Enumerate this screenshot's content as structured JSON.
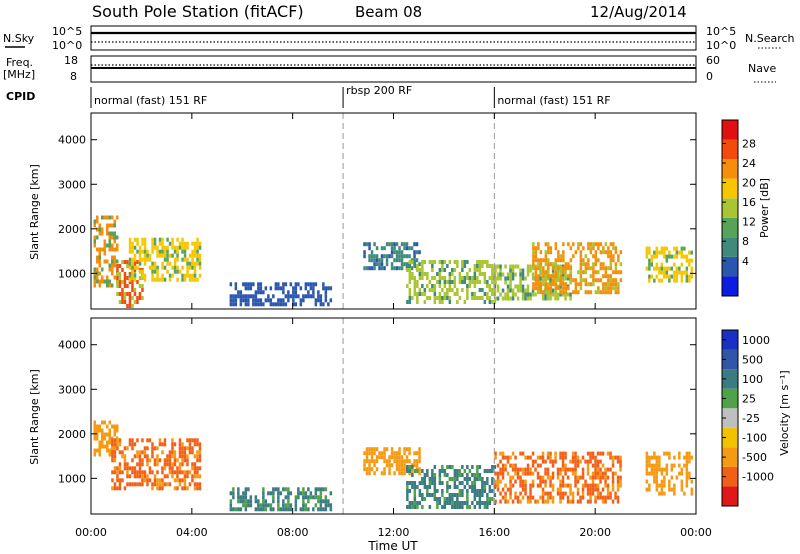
{
  "header": {
    "station": "South Pole Station (fitACF)",
    "beam": "Beam 08",
    "date": "12/Aug/2014"
  },
  "noise_panel": {
    "left_label": "N.Sky",
    "left_ticks": [
      "10^5",
      "10^0"
    ],
    "right_label": "N.Search",
    "right_ticks": [
      "10^5",
      "10^0"
    ]
  },
  "freq_panel": {
    "left_label_line1": "Freq.",
    "left_label_line2": "[MHz]",
    "left_ticks": [
      "18",
      "8"
    ],
    "right_label": "Nave",
    "right_ticks": [
      "60",
      "0"
    ]
  },
  "cpid": {
    "label": "CPID",
    "segments": [
      {
        "name": "normal (fast) 151 RF",
        "start_hour": 0,
        "end_hour": 10
      },
      {
        "name": "rbsp 200 RF",
        "start_hour": 10,
        "end_hour": 16
      },
      {
        "name": "normal (fast) 151 RF",
        "start_hour": 16,
        "end_hour": 24
      }
    ]
  },
  "power_panel": {
    "ylabel": "Slant Range [km]",
    "colorbar_label": "Power [dB]",
    "colorbar_ticks": [
      "28",
      "24",
      "20",
      "16",
      "12",
      "8",
      "4"
    ],
    "colors": [
      "#0b1de0",
      "#2b56ad",
      "#3f8a7a",
      "#58a35a",
      "#a9c531",
      "#f6c600",
      "#f58f0b",
      "#f24b0c",
      "#e01010"
    ]
  },
  "velocity_panel": {
    "ylabel": "Slant Range [km]",
    "colorbar_label": "Velocity [m s⁻¹]",
    "colorbar_ticks": [
      "1000",
      "500",
      "100",
      "25",
      "-25",
      "-100",
      "-500",
      "-1000"
    ],
    "colors": [
      "#1a2fc4",
      "#2f56a7",
      "#3a7c82",
      "#4fa248",
      "#bfbfbf",
      "#f2c200",
      "#f59a12",
      "#f26018",
      "#e01818"
    ]
  },
  "xaxis": {
    "label": "Time UT",
    "ticks": [
      "00:00",
      "04:00",
      "08:00",
      "12:00",
      "16:00",
      "20:00",
      "00:00"
    ]
  },
  "chart_data": {
    "type": "heatmap",
    "xlabel": "Time UT",
    "ylabel": "Slant Range [km]",
    "xlim_hours": [
      0,
      24
    ],
    "ylim_km": [
      200,
      4600
    ],
    "yticks_km": [
      1000,
      2000,
      3000,
      4000
    ],
    "mode_change_hours": [
      10,
      16
    ],
    "power_echo_regions": [
      {
        "t0": 0.1,
        "t1": 1.0,
        "r0": 700,
        "r1": 2300,
        "power_db": 22
      },
      {
        "t0": 1.0,
        "t1": 2.0,
        "r0": 300,
        "r1": 1300,
        "power_db": 26
      },
      {
        "t0": 1.5,
        "t1": 4.3,
        "r0": 900,
        "r1": 1800,
        "power_db": 18
      },
      {
        "t0": 5.5,
        "t1": 9.5,
        "r0": 300,
        "r1": 800,
        "power_db": 6
      },
      {
        "t0": 10.8,
        "t1": 13.0,
        "r0": 1100,
        "r1": 1700,
        "power_db": 10
      },
      {
        "t0": 12.5,
        "t1": 16.0,
        "r0": 400,
        "r1": 1300,
        "power_db": 16
      },
      {
        "t0": 16.0,
        "t1": 19.0,
        "r0": 400,
        "r1": 1200,
        "power_db": 14
      },
      {
        "t0": 17.5,
        "t1": 21.0,
        "r0": 600,
        "r1": 1700,
        "power_db": 24
      },
      {
        "t0": 22.0,
        "t1": 23.8,
        "r0": 800,
        "r1": 1600,
        "power_db": 20
      }
    ],
    "velocity_echo_regions": [
      {
        "t0": 0.1,
        "t1": 1.0,
        "r0": 1500,
        "r1": 2300,
        "velocity_ms": -100
      },
      {
        "t0": 0.8,
        "t1": 4.3,
        "r0": 800,
        "r1": 1900,
        "velocity_ms": -300
      },
      {
        "t0": 5.5,
        "t1": 9.5,
        "r0": 300,
        "r1": 800,
        "velocity_ms": 100
      },
      {
        "t0": 10.8,
        "t1": 13.0,
        "r0": 1100,
        "r1": 1700,
        "velocity_ms": -200
      },
      {
        "t0": 12.5,
        "t1": 16.0,
        "r0": 400,
        "r1": 1300,
        "velocity_ms": 80
      },
      {
        "t0": 16.0,
        "t1": 21.0,
        "r0": 500,
        "r1": 1600,
        "velocity_ms": -300
      },
      {
        "t0": 22.0,
        "t1": 23.8,
        "r0": 700,
        "r1": 1600,
        "velocity_ms": -200
      }
    ]
  }
}
